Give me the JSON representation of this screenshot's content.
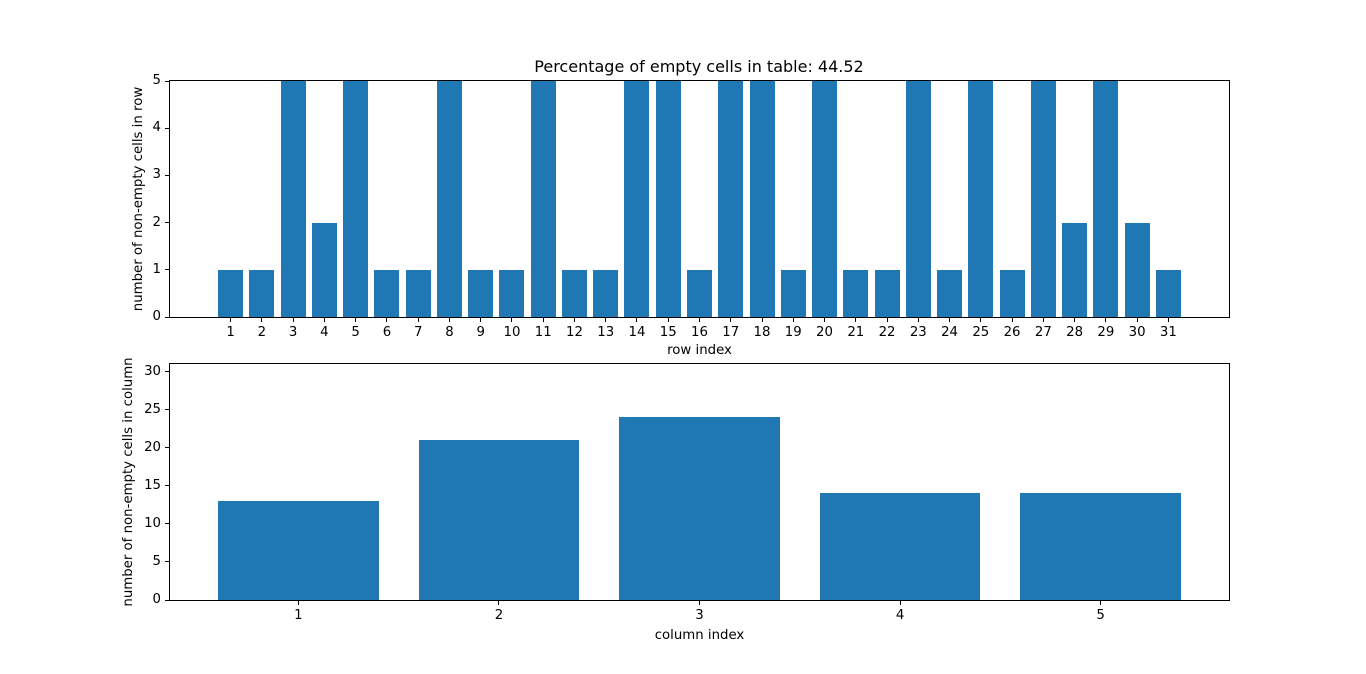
{
  "chart_data": [
    {
      "type": "bar",
      "title": "Percentage of empty cells in table: 44.52",
      "xlabel": "row index",
      "ylabel": "number of non-empty cells in row",
      "categories": [
        1,
        2,
        3,
        4,
        5,
        6,
        7,
        8,
        9,
        10,
        11,
        12,
        13,
        14,
        15,
        16,
        17,
        18,
        19,
        20,
        21,
        22,
        23,
        24,
        25,
        26,
        27,
        28,
        29,
        30,
        31
      ],
      "values": [
        1,
        1,
        5,
        2,
        5,
        1,
        1,
        5,
        1,
        1,
        5,
        1,
        1,
        5,
        5,
        1,
        5,
        5,
        1,
        5,
        1,
        1,
        5,
        1,
        5,
        1,
        5,
        2,
        5,
        2,
        1
      ],
      "xlim": [
        -0.94,
        32.94
      ],
      "ylim": [
        0,
        5
      ],
      "yticks": [
        0,
        1,
        2,
        3,
        4,
        5
      ],
      "bar_width": 0.8,
      "color": "#1f77b4",
      "grid": false,
      "legend": "none"
    },
    {
      "type": "bar",
      "title": "",
      "xlabel": "column index",
      "ylabel": "number of non-empty cells in column",
      "categories": [
        1,
        2,
        3,
        4,
        5
      ],
      "values": [
        13,
        21,
        24,
        14,
        14
      ],
      "xlim": [
        0.36,
        5.64
      ],
      "ylim": [
        0,
        31
      ],
      "yticks": [
        0,
        5,
        10,
        15,
        20,
        25,
        30
      ],
      "bar_width": 0.8,
      "color": "#1f77b4",
      "grid": false,
      "legend": "none"
    }
  ]
}
